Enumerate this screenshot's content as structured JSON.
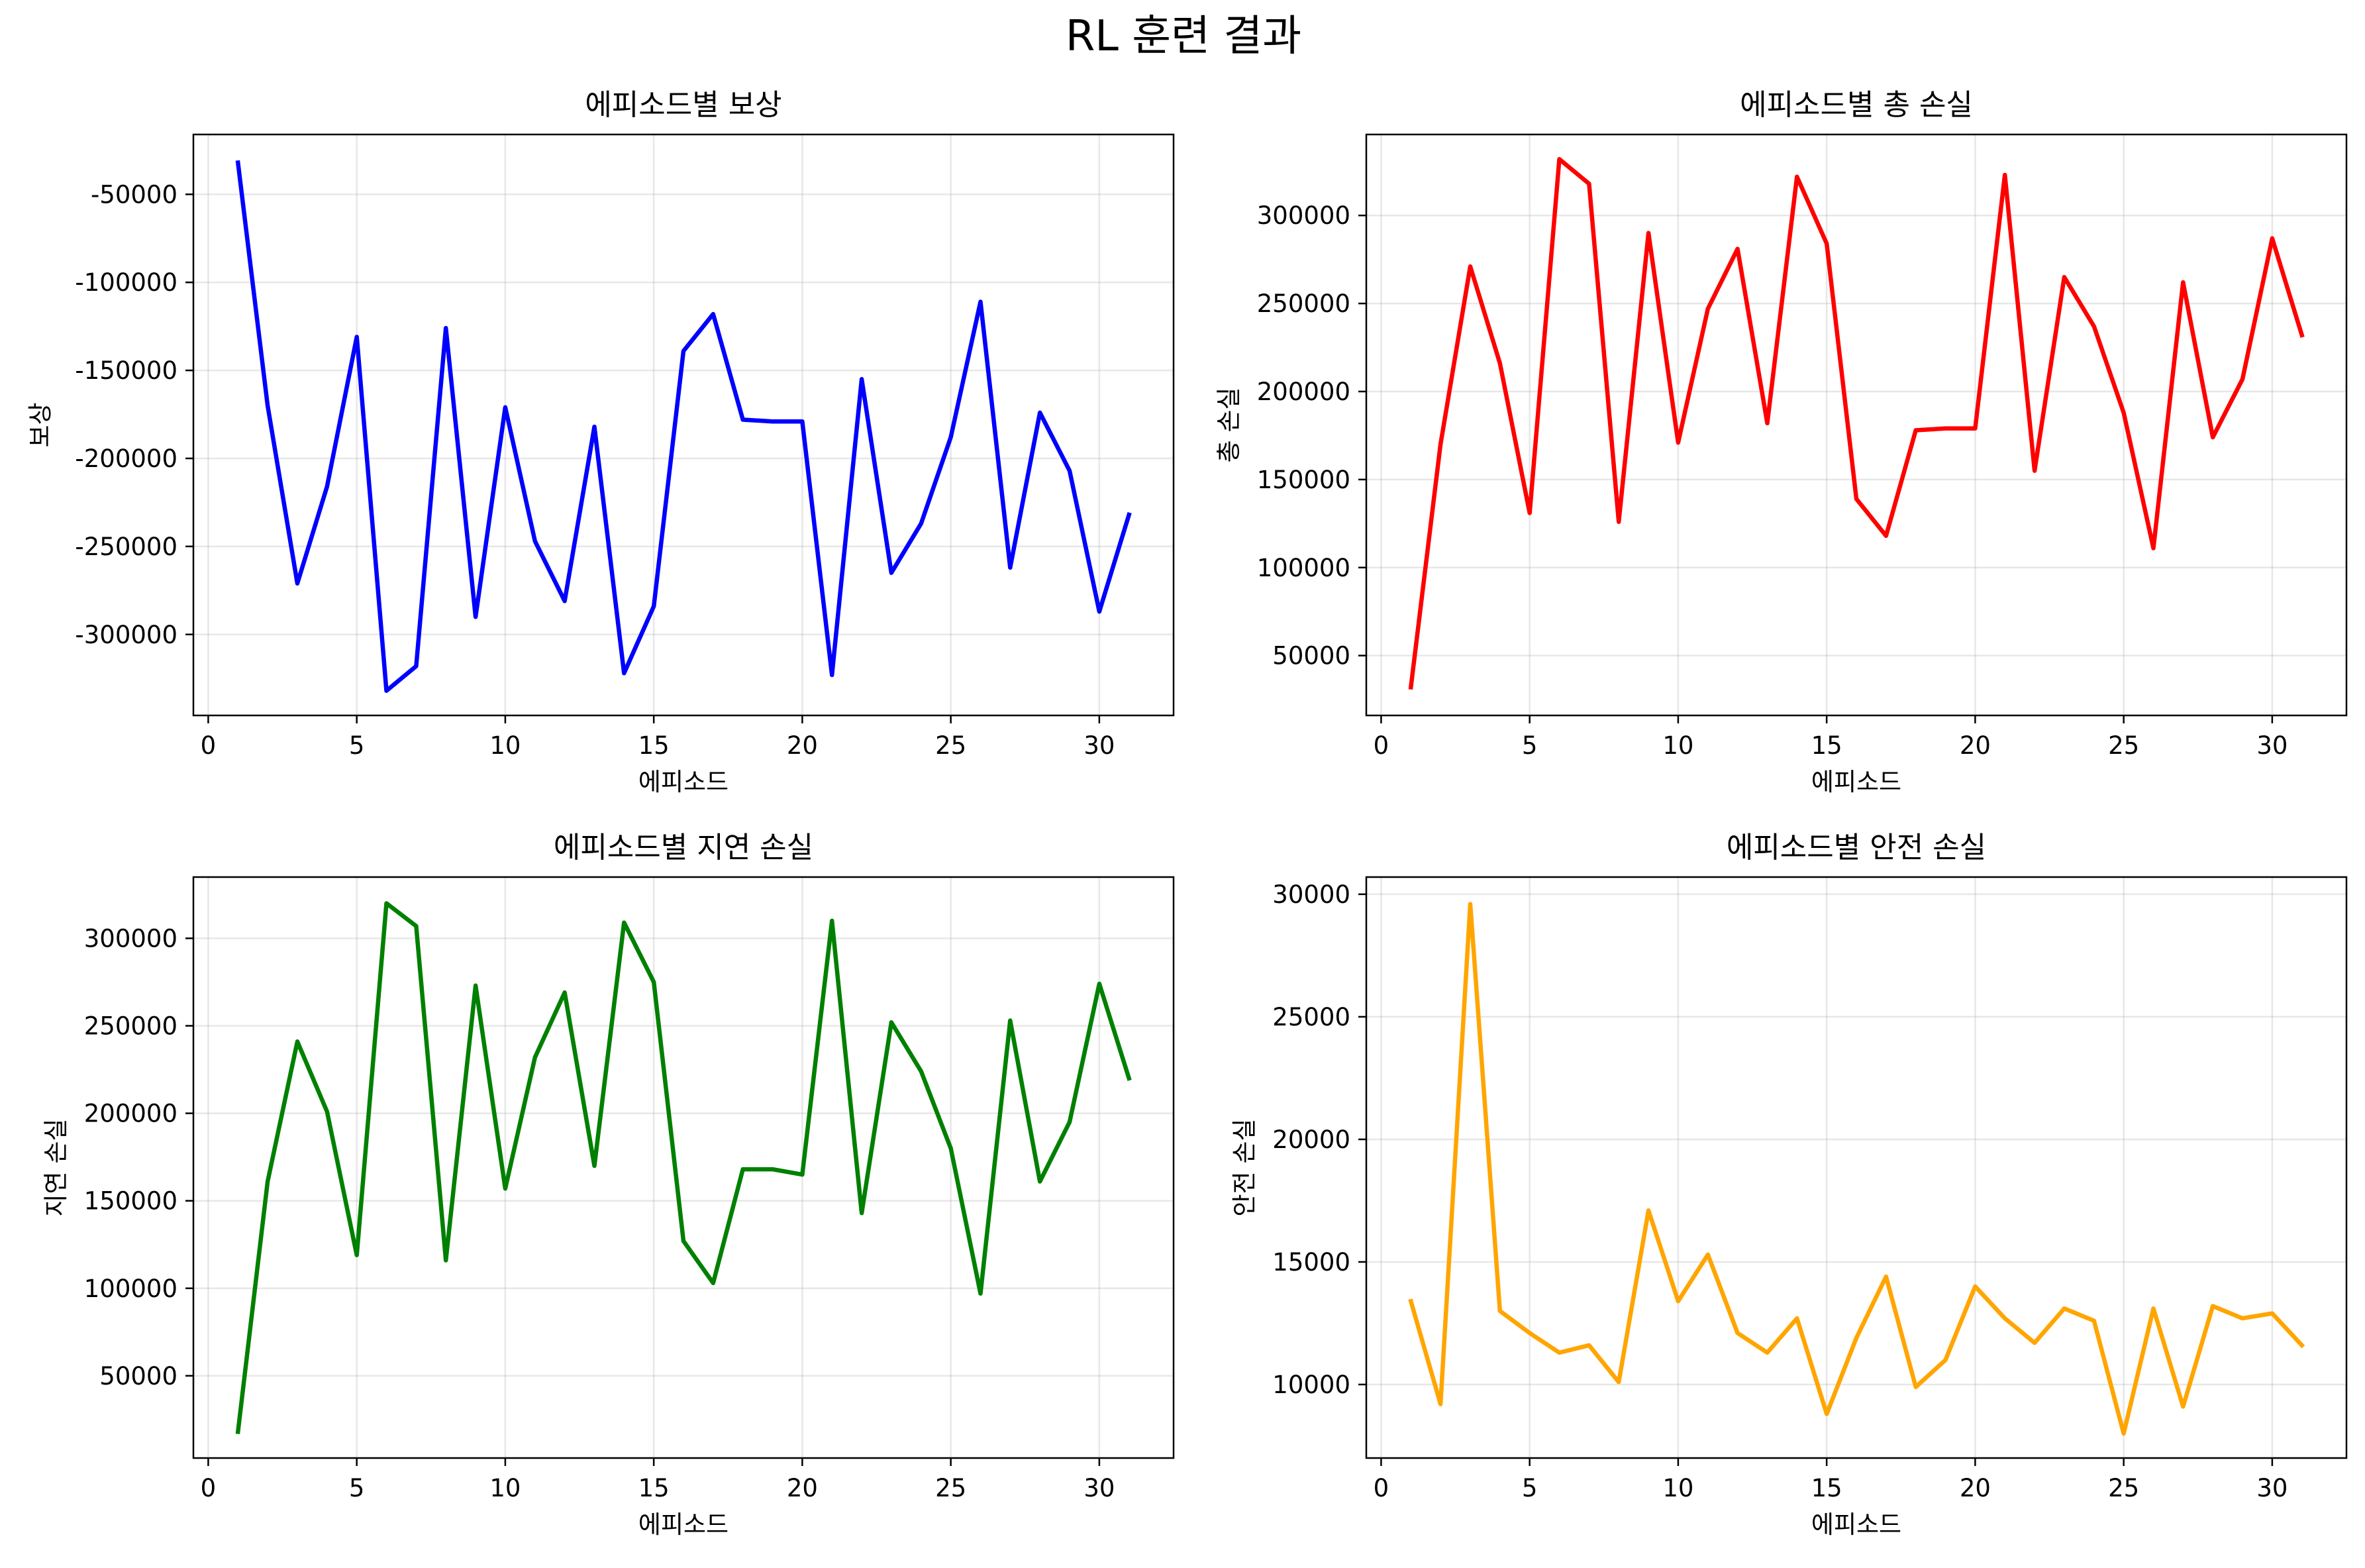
{
  "figure": {
    "suptitle": "RL 훈련 결과"
  },
  "chart_data": [
    {
      "type": "line",
      "title": "에피소드별 보상",
      "xlabel": "에피소드",
      "ylabel": "보상",
      "color": "#0000ff",
      "xlim": [
        -0.5,
        32.5
      ],
      "ylim": [
        -346000,
        -16000
      ],
      "xticks": [
        0,
        5,
        10,
        15,
        20,
        25,
        30
      ],
      "yticks": [
        -300000,
        -250000,
        -200000,
        -150000,
        -100000,
        -50000
      ],
      "grid": true,
      "x": [
        1,
        2,
        3,
        4,
        5,
        6,
        7,
        8,
        9,
        10,
        11,
        12,
        13,
        14,
        15,
        16,
        17,
        18,
        19,
        20,
        21,
        22,
        23,
        24,
        25,
        26,
        27,
        28,
        29,
        30,
        31
      ],
      "values": [
        -32000,
        -170000,
        -271000,
        -216000,
        -131000,
        -332000,
        -318000,
        -126000,
        -290000,
        -171000,
        -247000,
        -281000,
        -182000,
        -322000,
        -284000,
        -139000,
        -118000,
        -178000,
        -179000,
        -179000,
        -323000,
        -155000,
        -265000,
        -237000,
        -188000,
        -111000,
        -262000,
        -174000,
        -207000,
        -287000,
        -232000
      ]
    },
    {
      "type": "line",
      "title": "에피소드별 총 손실",
      "xlabel": "에피소드",
      "ylabel": "총 손실",
      "color": "#ff0000",
      "xlim": [
        -0.5,
        32.5
      ],
      "ylim": [
        16000,
        346000
      ],
      "xticks": [
        0,
        5,
        10,
        15,
        20,
        25,
        30
      ],
      "yticks": [
        50000,
        100000,
        150000,
        200000,
        250000,
        300000
      ],
      "grid": true,
      "x": [
        1,
        2,
        3,
        4,
        5,
        6,
        7,
        8,
        9,
        10,
        11,
        12,
        13,
        14,
        15,
        16,
        17,
        18,
        19,
        20,
        21,
        22,
        23,
        24,
        25,
        26,
        27,
        28,
        29,
        30,
        31
      ],
      "values": [
        32000,
        170000,
        271000,
        216000,
        131000,
        332000,
        318000,
        126000,
        290000,
        171000,
        247000,
        281000,
        182000,
        322000,
        284000,
        139000,
        118000,
        178000,
        179000,
        179000,
        323000,
        155000,
        265000,
        237000,
        188000,
        111000,
        262000,
        174000,
        207000,
        287000,
        232000
      ]
    },
    {
      "type": "line",
      "title": "에피소드별 지연 손실",
      "xlabel": "에피소드",
      "ylabel": "지연 손실",
      "color": "#008000",
      "xlim": [
        -0.5,
        32.5
      ],
      "ylim": [
        3000,
        335000
      ],
      "xticks": [
        0,
        5,
        10,
        15,
        20,
        25,
        30
      ],
      "yticks": [
        50000,
        100000,
        150000,
        200000,
        250000,
        300000
      ],
      "grid": true,
      "x": [
        1,
        2,
        3,
        4,
        5,
        6,
        7,
        8,
        9,
        10,
        11,
        12,
        13,
        14,
        15,
        16,
        17,
        18,
        19,
        20,
        21,
        22,
        23,
        24,
        25,
        26,
        27,
        28,
        29,
        30,
        31
      ],
      "values": [
        18000,
        161000,
        241000,
        201000,
        119000,
        320000,
        307000,
        116000,
        273000,
        157000,
        232000,
        269000,
        170000,
        309000,
        275000,
        127000,
        103000,
        168000,
        168000,
        165000,
        310000,
        143000,
        252000,
        224000,
        180000,
        97000,
        253000,
        161000,
        195000,
        274000,
        220000
      ]
    },
    {
      "type": "line",
      "title": "에피소드별 안전 손실",
      "xlabel": "에피소드",
      "ylabel": "안전 손실",
      "color": "#ffa500",
      "xlim": [
        -0.5,
        32.5
      ],
      "ylim": [
        7000,
        30700
      ],
      "xticks": [
        0,
        5,
        10,
        15,
        20,
        25,
        30
      ],
      "yticks": [
        10000,
        15000,
        20000,
        25000,
        30000
      ],
      "grid": true,
      "x": [
        1,
        2,
        3,
        4,
        5,
        6,
        7,
        8,
        9,
        10,
        11,
        12,
        13,
        14,
        15,
        16,
        17,
        18,
        19,
        20,
        21,
        22,
        23,
        24,
        25,
        26,
        27,
        28,
        29,
        30,
        31
      ],
      "values": [
        13400,
        9200,
        29600,
        13000,
        12100,
        11300,
        11600,
        10100,
        17100,
        13400,
        15300,
        12100,
        11300,
        12700,
        8800,
        11900,
        14400,
        9900,
        11000,
        14000,
        12700,
        11700,
        13100,
        12600,
        8000,
        13100,
        9100,
        13200,
        12700,
        12900,
        11600
      ]
    }
  ]
}
